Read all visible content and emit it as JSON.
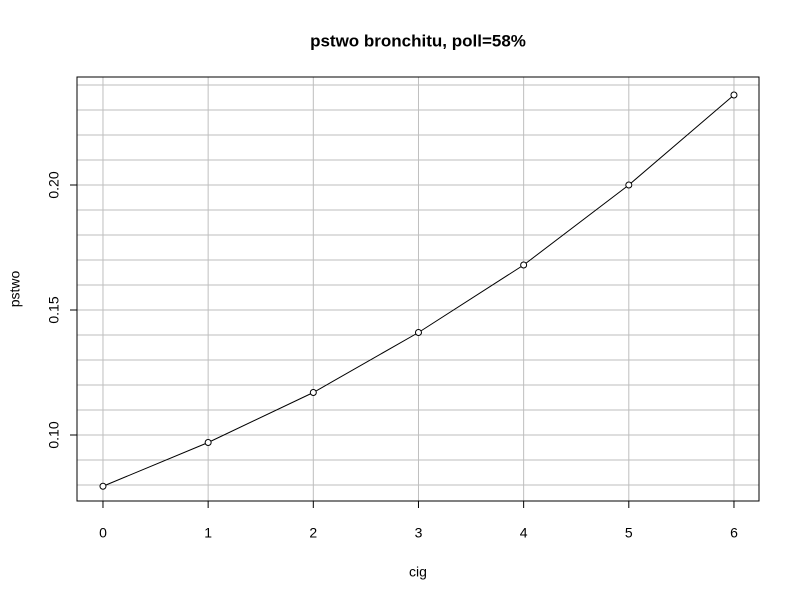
{
  "chart_data": {
    "type": "line",
    "title": "pstwo bronchitu, poll=58%",
    "xlabel": "cig",
    "ylabel": "pstwo",
    "x": [
      0,
      1,
      2,
      3,
      4,
      5,
      6
    ],
    "series": [
      {
        "color": "#000000",
        "values": [
          0.0795,
          0.097,
          0.117,
          0.141,
          0.168,
          0.2,
          0.236
        ]
      }
    ],
    "xlim": [
      -0.247,
      6.238
    ],
    "ylim": [
      0.0736,
      0.2432
    ],
    "xticks": [
      0,
      1,
      2,
      3,
      4,
      5,
      6
    ],
    "yticks": [
      {
        "value": 0.1,
        "label": "0.10"
      },
      {
        "value": 0.15,
        "label": "0.15"
      },
      {
        "value": 0.2,
        "label": "0.20"
      }
    ],
    "ygrid": [
      0.08,
      0.09,
      0.1,
      0.11,
      0.12,
      0.13,
      0.14,
      0.15,
      0.16,
      0.17,
      0.18,
      0.19,
      0.2,
      0.21,
      0.22,
      0.23,
      0.24
    ],
    "grid": true,
    "markers": "open-circle"
  }
}
